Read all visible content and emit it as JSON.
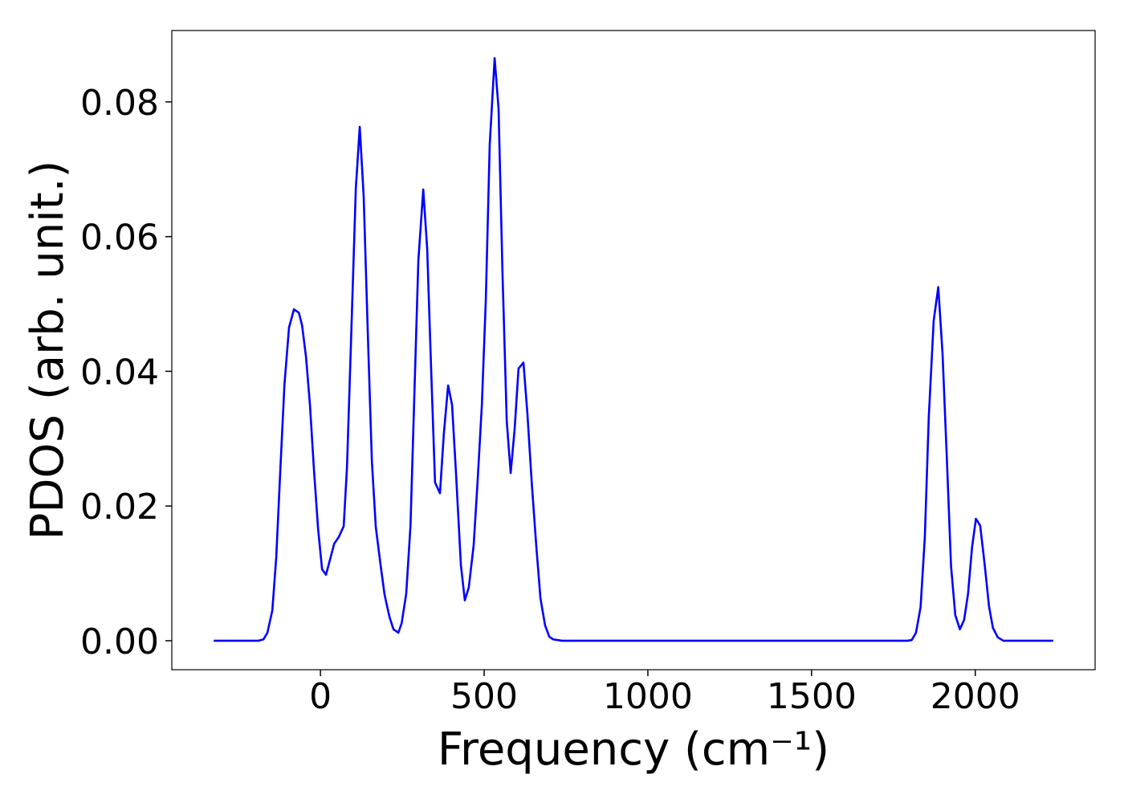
{
  "chart_data": {
    "type": "line",
    "xlabel": "Frequency (cm⁻¹)",
    "ylabel": "PDOS (arb. unit.)",
    "x": [
      -326,
      -189,
      -174,
      -162,
      -147,
      -135,
      -123,
      -110,
      -96,
      -81,
      -66,
      -56,
      -44,
      -32,
      -20,
      -7,
      5,
      17,
      42,
      56,
      71,
      81,
      93,
      108,
      120,
      132,
      145,
      157,
      169,
      184,
      196,
      211,
      223,
      238,
      248,
      262,
      275,
      287,
      299,
      314,
      326,
      338,
      350,
      365,
      377,
      390,
      402,
      414,
      429,
      441,
      453,
      468,
      480,
      493,
      505,
      517,
      532,
      544,
      556,
      569,
      581,
      593,
      605,
      620,
      632,
      645,
      659,
      672,
      686,
      699,
      711,
      738,
      1792,
      1806,
      1819,
      1833,
      1846,
      1858,
      1873,
      1887,
      1900,
      1914,
      1926,
      1939,
      1953,
      1966,
      1978,
      1990,
      2002,
      2015,
      2029,
      2042,
      2054,
      2069,
      2086,
      2238
    ],
    "series": [
      {
        "color": "#0000ff",
        "values": [
          0,
          0,
          0.0002,
          0.0012,
          0.0045,
          0.0124,
          0.0249,
          0.038,
          0.0465,
          0.0492,
          0.0487,
          0.0468,
          0.0421,
          0.035,
          0.0255,
          0.0165,
          0.0106,
          0.0098,
          0.0144,
          0.0154,
          0.017,
          0.0257,
          0.0439,
          0.0671,
          0.0763,
          0.066,
          0.0451,
          0.0267,
          0.0169,
          0.0111,
          0.0068,
          0.0035,
          0.0017,
          0.0012,
          0.0026,
          0.007,
          0.0171,
          0.0368,
          0.0564,
          0.067,
          0.0582,
          0.0404,
          0.0235,
          0.0219,
          0.0308,
          0.0379,
          0.035,
          0.0249,
          0.0112,
          0.006,
          0.0079,
          0.0142,
          0.0237,
          0.035,
          0.0505,
          0.0737,
          0.0865,
          0.079,
          0.0546,
          0.0326,
          0.0249,
          0.0314,
          0.0404,
          0.0413,
          0.0338,
          0.0237,
          0.0142,
          0.0063,
          0.0023,
          0.0006,
          0.0002,
          0,
          0,
          0.0001,
          0.0012,
          0.005,
          0.0154,
          0.0332,
          0.0475,
          0.0525,
          0.0427,
          0.0261,
          0.0111,
          0.0038,
          0.0017,
          0.0031,
          0.007,
          0.0138,
          0.0181,
          0.0171,
          0.0112,
          0.0051,
          0.0019,
          0.0005,
          0,
          0
        ]
      }
    ],
    "xlim": [
      -454,
      2366
    ],
    "ylim": [
      -0.0043,
      0.0906
    ],
    "xticks": [
      0,
      500,
      1000,
      1500,
      2000
    ],
    "yticks": [
      {
        "value": 0,
        "label": "0.00"
      },
      {
        "value": 0.02,
        "label": "0.02"
      },
      {
        "value": 0.04,
        "label": "0.04"
      },
      {
        "value": 0.06,
        "label": "0.06"
      },
      {
        "value": 0.08,
        "label": "0.08"
      }
    ],
    "grid": false
  }
}
